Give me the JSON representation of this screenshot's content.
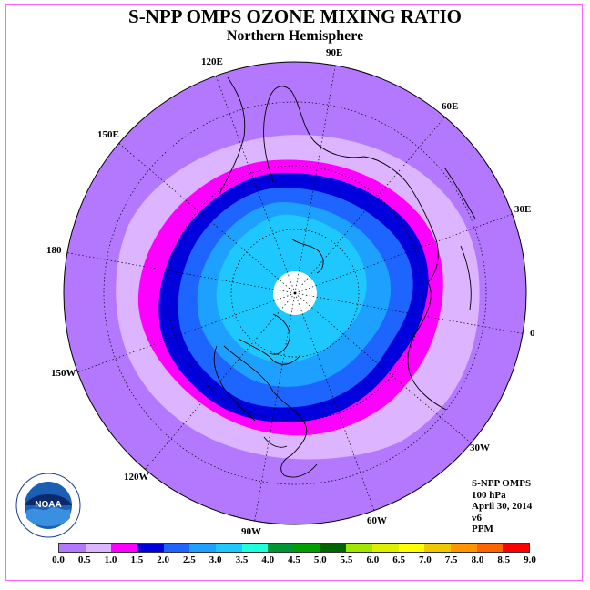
{
  "title": "S-NPP OMPS OZONE MIXING RATIO",
  "subtitle": "Northern Hemisphere",
  "longitude_labels": [
    "90E",
    "60E",
    "30E",
    "0",
    "30W",
    "60W",
    "90W",
    "120W",
    "150W",
    "180",
    "150E",
    "120E"
  ],
  "info": {
    "instrument": "S-NPP OMPS",
    "pressure": "100 hPa",
    "date": "April 30, 2014",
    "version": "v6",
    "units": "PPM"
  },
  "logo_text": "NOAA",
  "colorbar": {
    "ticks": [
      "0.0",
      "0.5",
      "1.0",
      "1.5",
      "2.0",
      "2.5",
      "3.0",
      "3.5",
      "4.0",
      "4.5",
      "5.0",
      "5.5",
      "6.0",
      "6.5",
      "7.0",
      "7.5",
      "8.0",
      "8.5",
      "9.0"
    ],
    "colors": [
      "#b478ff",
      "#dcb4ff",
      "#ff00ff",
      "#0000dc",
      "#1e64ff",
      "#1ea0ff",
      "#1ec8ff",
      "#1effdc",
      "#009632",
      "#00a000",
      "#006400",
      "#a0e600",
      "#dcf000",
      "#ffff00",
      "#f0c800",
      "#ff9600",
      "#ff6400",
      "#ff0000",
      "#8c5a3c"
    ]
  },
  "map_levels": {
    "background": "#b478ff",
    "level_0_5": "#dcb4ff",
    "level_1_0": "#ff00ff",
    "level_1_5": "#0000dc",
    "level_2_0": "#1e64ff",
    "level_2_5": "#1ea0ff",
    "level_3_0": "#1ec8ff",
    "pole_no_data": "#ffffff"
  }
}
